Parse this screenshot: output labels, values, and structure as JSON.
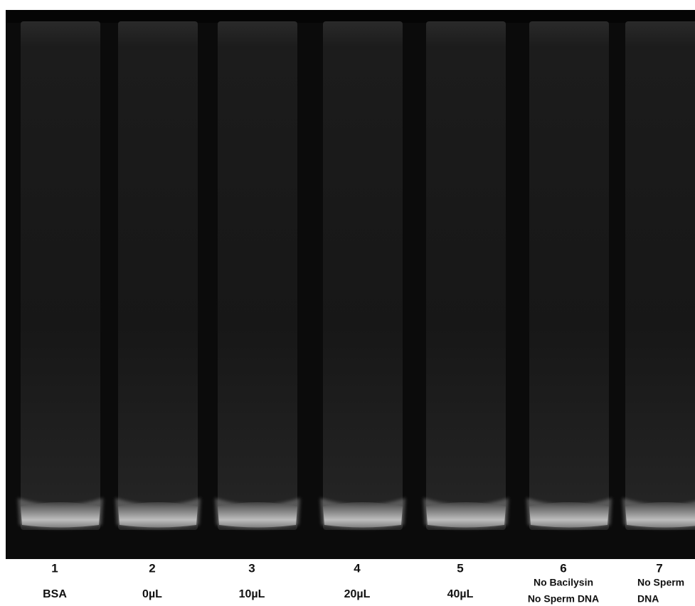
{
  "lanes": [
    {
      "number": "1",
      "label": [
        "BSA"
      ]
    },
    {
      "number": "2",
      "label": [
        "0µL"
      ]
    },
    {
      "number": "3",
      "label": [
        "10µL"
      ]
    },
    {
      "number": "4",
      "label": [
        "20µL"
      ]
    },
    {
      "number": "5",
      "label": [
        "40µL"
      ]
    },
    {
      "number": "6",
      "label": [
        "No Bacilysin",
        "No Sperm DNA"
      ]
    },
    {
      "number": "7",
      "label": [
        "No Sperm",
        "DNA"
      ]
    }
  ]
}
